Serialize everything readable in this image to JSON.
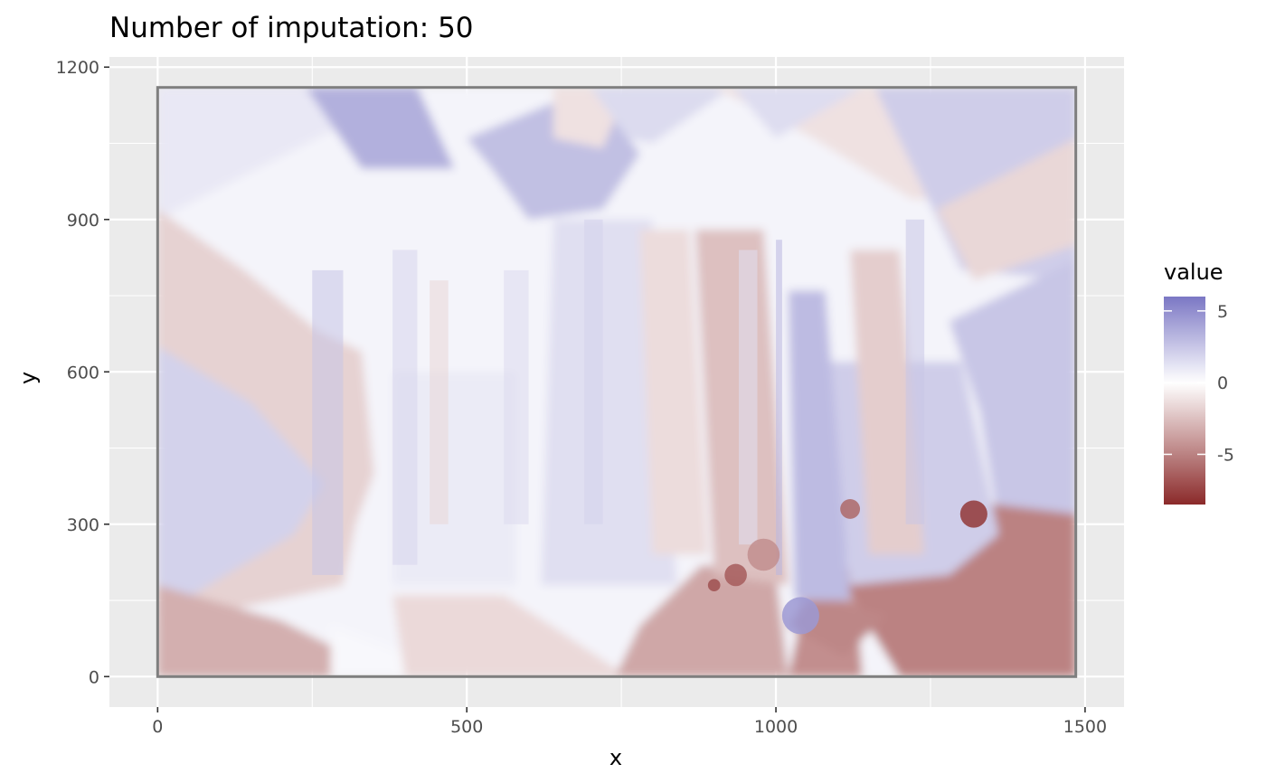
{
  "chart_data": {
    "type": "heatmap",
    "title": "Number of imputation: 50",
    "xlabel": "x",
    "ylabel": "y",
    "xlim": [
      -78,
      1563
    ],
    "ylim": [
      -60,
      1220
    ],
    "x_ticks": [
      0,
      500,
      1000,
      1500
    ],
    "x_tick_labels": [
      "0",
      "500",
      "1000",
      "1500"
    ],
    "y_ticks": [
      0,
      300,
      600,
      900,
      1200
    ],
    "y_tick_labels": [
      "0",
      "300",
      "600",
      "900",
      "1200"
    ],
    "data_extent": {
      "x": [
        0,
        1485
      ],
      "y": [
        0,
        1160
      ]
    },
    "grid": true,
    "background": "#ebebeb",
    "border_color": "#7f7f7f",
    "legend": {
      "title": "value",
      "position": "right",
      "range": [
        -8.5,
        6
      ],
      "breaks": [
        5,
        0,
        -5
      ],
      "break_labels": [
        "5",
        "0",
        "-5"
      ],
      "low_color": "#8b2a2a",
      "mid_color": "#ffffff",
      "high_color": "#7b77c4"
    },
    "surface_regions": [
      {
        "shape": "rect",
        "x": [
          0,
          1485
        ],
        "y": [
          0,
          1160
        ],
        "value": 0.5
      },
      {
        "shape": "poly",
        "points": [
          [
            0,
            1160
          ],
          [
            420,
            1160
          ],
          [
            0,
            900
          ]
        ],
        "value": 1.0
      },
      {
        "shape": "poly",
        "points": [
          [
            240,
            1160
          ],
          [
            420,
            1160
          ],
          [
            480,
            1000
          ],
          [
            330,
            1000
          ]
        ],
        "value": 3.5
      },
      {
        "shape": "poly",
        "points": [
          [
            0,
            920
          ],
          [
            140,
            800
          ],
          [
            260,
            680
          ],
          [
            330,
            640
          ],
          [
            350,
            400
          ],
          [
            320,
            300
          ],
          [
            300,
            180
          ],
          [
            0,
            100
          ]
        ],
        "value": -1.8
      },
      {
        "shape": "poly",
        "points": [
          [
            0,
            650
          ],
          [
            150,
            540
          ],
          [
            270,
            380
          ],
          [
            220,
            280
          ],
          [
            0,
            120
          ]
        ],
        "value": 2.0
      },
      {
        "shape": "poly",
        "points": [
          [
            0,
            180
          ],
          [
            200,
            110
          ],
          [
            380,
            0
          ],
          [
            0,
            0
          ]
        ],
        "value": -3.2
      },
      {
        "shape": "poly",
        "points": [
          [
            280,
            100
          ],
          [
            500,
            0
          ],
          [
            280,
            0
          ]
        ],
        "value": 0.3
      },
      {
        "shape": "poly",
        "points": [
          [
            380,
            160
          ],
          [
            560,
            160
          ],
          [
            650,
            90
          ],
          [
            760,
            0
          ],
          [
            400,
            0
          ]
        ],
        "value": -1.5
      },
      {
        "shape": "poly",
        "points": [
          [
            380,
            600
          ],
          [
            580,
            600
          ],
          [
            580,
            180
          ],
          [
            380,
            180
          ]
        ],
        "value": 0.9
      },
      {
        "shape": "poly",
        "points": [
          [
            500,
            1060
          ],
          [
            700,
            1160
          ],
          [
            780,
            1030
          ],
          [
            720,
            920
          ],
          [
            600,
            900
          ],
          [
            540,
            1000
          ]
        ],
        "value": 2.8
      },
      {
        "shape": "poly",
        "points": [
          [
            640,
            1160
          ],
          [
            760,
            1160
          ],
          [
            720,
            1040
          ],
          [
            640,
            1060
          ]
        ],
        "value": -1.2
      },
      {
        "shape": "poly",
        "points": [
          [
            700,
            1160
          ],
          [
            930,
            1160
          ],
          [
            800,
            1050
          ],
          [
            760,
            1060
          ]
        ],
        "value": 1.6
      },
      {
        "shape": "poly",
        "points": [
          [
            900,
            1160
          ],
          [
            1485,
            1160
          ],
          [
            1485,
            940
          ],
          [
            1220,
            940
          ],
          [
            1060,
            1060
          ]
        ],
        "value": -1.2
      },
      {
        "shape": "poly",
        "points": [
          [
            930,
            1160
          ],
          [
            1140,
            1160
          ],
          [
            1000,
            1060
          ]
        ],
        "value": 1.5
      },
      {
        "shape": "poly",
        "points": [
          [
            1160,
            1160
          ],
          [
            1485,
            1160
          ],
          [
            1485,
            780
          ],
          [
            1300,
            800
          ]
        ],
        "value": 2.2
      },
      {
        "shape": "poly",
        "points": [
          [
            1260,
            920
          ],
          [
            1485,
            1060
          ],
          [
            1485,
            850
          ],
          [
            1320,
            780
          ]
        ],
        "value": -1.6
      },
      {
        "shape": "poly",
        "points": [
          [
            1280,
            700
          ],
          [
            1485,
            820
          ],
          [
            1485,
            320
          ],
          [
            1360,
            300
          ],
          [
            1330,
            520
          ]
        ],
        "value": 2.5
      },
      {
        "shape": "poly",
        "points": [
          [
            1280,
            350
          ],
          [
            1485,
            320
          ],
          [
            1485,
            0
          ],
          [
            1200,
            0
          ],
          [
            1100,
            200
          ]
        ],
        "value": -5.0
      },
      {
        "shape": "poly",
        "points": [
          [
            1020,
            0
          ],
          [
            1140,
            0
          ],
          [
            1130,
            150
          ],
          [
            1050,
            170
          ]
        ],
        "value": -4.5
      },
      {
        "shape": "poly",
        "points": [
          [
            740,
            0
          ],
          [
            1020,
            0
          ],
          [
            1000,
            200
          ],
          [
            880,
            220
          ],
          [
            780,
            100
          ]
        ],
        "value": -3.5
      },
      {
        "shape": "poly",
        "points": [
          [
            1050,
            160
          ],
          [
            1180,
            120
          ],
          [
            1110,
            40
          ],
          [
            1020,
            100
          ]
        ],
        "value": -4.8
      },
      {
        "shape": "poly",
        "points": [
          [
            1080,
            620
          ],
          [
            1300,
            620
          ],
          [
            1360,
            280
          ],
          [
            1280,
            200
          ],
          [
            1120,
            180
          ]
        ],
        "value": 2.2
      },
      {
        "shape": "poly",
        "points": [
          [
            640,
            900
          ],
          [
            800,
            900
          ],
          [
            840,
            180
          ],
          [
            620,
            180
          ]
        ],
        "value": 1.4
      },
      {
        "shape": "poly",
        "points": [
          [
            780,
            880
          ],
          [
            860,
            880
          ],
          [
            890,
            240
          ],
          [
            800,
            240
          ]
        ],
        "value": -1.4
      },
      {
        "shape": "poly",
        "points": [
          [
            870,
            880
          ],
          [
            980,
            880
          ],
          [
            1020,
            180
          ],
          [
            900,
            200
          ]
        ],
        "value": -2.5
      },
      {
        "shape": "poly",
        "points": [
          [
            1020,
            760
          ],
          [
            1080,
            760
          ],
          [
            1120,
            150
          ],
          [
            1030,
            150
          ]
        ],
        "value": 3.0
      },
      {
        "shape": "poly",
        "points": [
          [
            1120,
            840
          ],
          [
            1200,
            840
          ],
          [
            1240,
            240
          ],
          [
            1150,
            240
          ]
        ],
        "value": -2.0
      }
    ],
    "surface_stripes": [
      {
        "x0": 250,
        "x1": 300,
        "y0": 200,
        "y1": 800,
        "value": 2.6
      },
      {
        "x0": 380,
        "x1": 420,
        "y0": 220,
        "y1": 840,
        "value": 1.8
      },
      {
        "x0": 440,
        "x1": 470,
        "y0": 300,
        "y1": 780,
        "value": -1.6
      },
      {
        "x0": 560,
        "x1": 600,
        "y0": 300,
        "y1": 800,
        "value": 1.6
      },
      {
        "x0": 690,
        "x1": 720,
        "y0": 300,
        "y1": 900,
        "value": 2.0
      },
      {
        "x0": 940,
        "x1": 970,
        "y0": 260,
        "y1": 840,
        "value": 1.4
      },
      {
        "x0": 1000,
        "x1": 1010,
        "y0": 200,
        "y1": 860,
        "value": 3.2
      },
      {
        "x0": 1210,
        "x1": 1240,
        "y0": 300,
        "y1": 900,
        "value": 2.5
      }
    ],
    "surface_spots": [
      {
        "x": 1320,
        "y": 320,
        "r": 22,
        "value": -8.0
      },
      {
        "x": 935,
        "y": 200,
        "r": 18,
        "value": -6.5
      },
      {
        "x": 1120,
        "y": 330,
        "r": 16,
        "value": -6.0
      },
      {
        "x": 980,
        "y": 240,
        "r": 26,
        "value": -4.5
      },
      {
        "x": 1040,
        "y": 120,
        "r": 30,
        "value": 4.5
      },
      {
        "x": 900,
        "y": 180,
        "r": 10,
        "value": -7.0
      }
    ]
  }
}
